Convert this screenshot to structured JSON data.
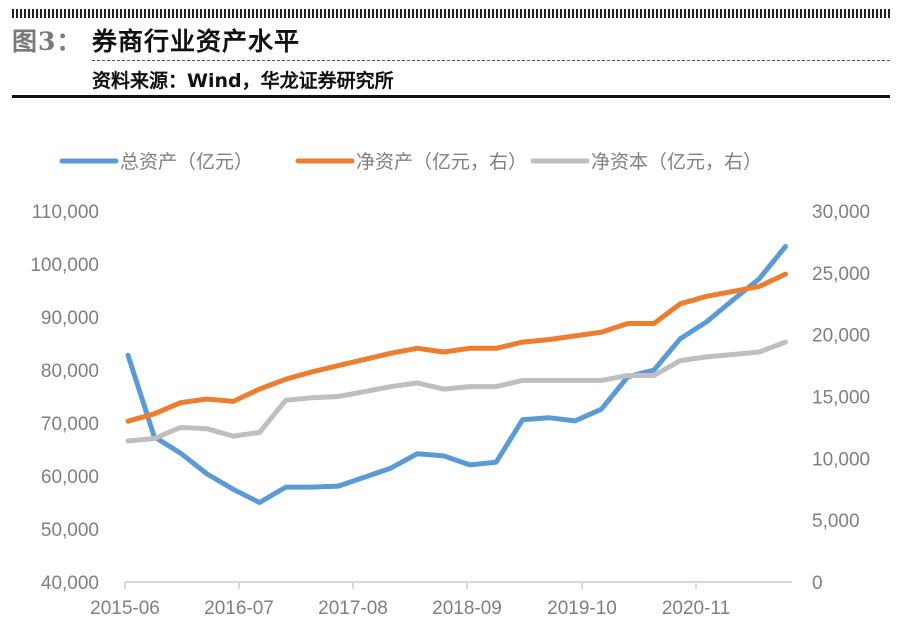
{
  "header": {
    "figure_label": "图3：",
    "title": "券商行业资产水平",
    "source": "资料来源：Wind，华龙证券研究所"
  },
  "chart_data": {
    "type": "line",
    "title": "券商行业资产水平",
    "xlabel": "",
    "ylabel": "",
    "x": [
      "2015-06",
      "2015-09",
      "2015-12",
      "2016-03",
      "2016-06",
      "2016-09",
      "2016-12",
      "2017-03",
      "2017-06",
      "2017-09",
      "2017-12",
      "2018-03",
      "2018-06",
      "2018-09",
      "2018-12",
      "2019-03",
      "2019-06",
      "2019-09",
      "2019-12",
      "2020-03",
      "2020-06",
      "2020-09",
      "2020-12",
      "2021-03",
      "2021-06",
      "2021-09"
    ],
    "x_tick_labels": [
      "2015-06",
      "2016-07",
      "2017-08",
      "2018-09",
      "2019-10",
      "2020-11"
    ],
    "y_left": {
      "ylim": [
        40000,
        110000
      ],
      "ticks": [
        "40,000",
        "50,000",
        "60,000",
        "70,000",
        "80,000",
        "90,000",
        "100,000",
        "110,000"
      ]
    },
    "y_right": {
      "ylim": [
        0,
        30000
      ],
      "ticks": [
        "0",
        "5,000",
        "10,000",
        "15,000",
        "20,000",
        "25,000",
        "30,000"
      ]
    },
    "grid": false,
    "legend_position": "top",
    "series": [
      {
        "name": "总资产（亿元）",
        "axis": "left",
        "color": "#5b9bd5",
        "values": [
          82800,
          67400,
          64300,
          60400,
          57500,
          55000,
          57900,
          57900,
          58100,
          59800,
          61500,
          64200,
          63800,
          62100,
          62600,
          70600,
          71000,
          70400,
          72600,
          78700,
          80000,
          85900,
          89100,
          93200,
          97200,
          103300
        ]
      },
      {
        "name": "净资产（亿元，右）",
        "axis": "right",
        "color": "#ed7d31",
        "values": [
          13000,
          13600,
          14500,
          14800,
          14600,
          15600,
          16400,
          17000,
          17500,
          18000,
          18500,
          18900,
          18600,
          18900,
          18900,
          19400,
          19600,
          19900,
          20200,
          20900,
          20900,
          22500,
          23100,
          23500,
          23900,
          24900
        ]
      },
      {
        "name": "净资本（亿元，右）",
        "axis": "right",
        "color": "#bfbfbf",
        "values": [
          11400,
          11600,
          12500,
          12400,
          11800,
          12100,
          14700,
          14900,
          15000,
          15400,
          15800,
          16100,
          15600,
          15800,
          15800,
          16300,
          16300,
          16300,
          16300,
          16700,
          16700,
          17900,
          18200,
          18400,
          18600,
          19400
        ]
      }
    ]
  }
}
